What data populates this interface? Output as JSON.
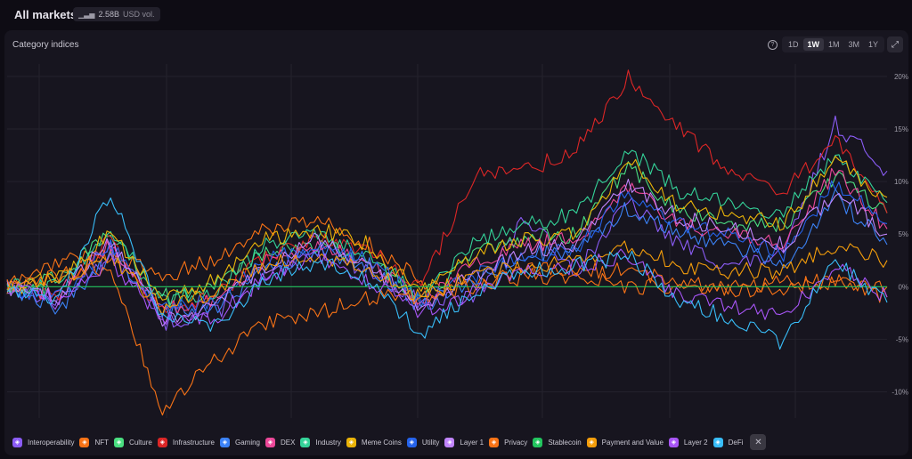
{
  "header": {
    "title": "All markets",
    "volume": "2.58B",
    "volume_unit": "USD vol."
  },
  "panel": {
    "title": "Category indices",
    "timeframes": [
      "1D",
      "1W",
      "1M",
      "3M",
      "1Y"
    ],
    "active_timeframe": "1W"
  },
  "legend": [
    {
      "name": "Interoperability",
      "color": "#8b5cf6"
    },
    {
      "name": "NFT",
      "color": "#f97316"
    },
    {
      "name": "Culture",
      "color": "#4ade80"
    },
    {
      "name": "Infrastructure",
      "color": "#dc2626"
    },
    {
      "name": "Gaming",
      "color": "#3b82f6"
    },
    {
      "name": "DEX",
      "color": "#ec4899"
    },
    {
      "name": "Industry",
      "color": "#34d399"
    },
    {
      "name": "Meme Coins",
      "color": "#eab308"
    },
    {
      "name": "Utility",
      "color": "#2563eb"
    },
    {
      "name": "Layer 1",
      "color": "#c084fc"
    },
    {
      "name": "Privacy",
      "color": "#f97316"
    },
    {
      "name": "Stablecoin",
      "color": "#22c55e"
    },
    {
      "name": "Payment and Value",
      "color": "#f59e0b"
    },
    {
      "name": "Layer 2",
      "color": "#a855f7"
    },
    {
      "name": "DeFi",
      "color": "#38bdf8"
    }
  ],
  "chart_data": {
    "type": "line",
    "y_unit": "%",
    "ylim": [
      -12.5,
      20.5
    ],
    "yticks": [
      "20%",
      "15%",
      "10%",
      "5%",
      "0%",
      "-5%",
      "-10%"
    ],
    "ytick_values": [
      20,
      15,
      10,
      5,
      0,
      -5,
      -10
    ],
    "grid": true,
    "series": [
      {
        "name": "Interoperability",
        "color": "#8b5cf6",
        "values": [
          0,
          -1.5,
          3.5,
          -3.5,
          -2.5,
          0.5,
          3.5,
          1.5,
          -1.5,
          -1,
          6.5,
          1.5,
          8,
          4,
          2,
          3,
          15.5,
          11
        ]
      },
      {
        "name": "NFT",
        "color": "#f97316",
        "values": [
          0,
          2.5,
          3,
          1,
          2.5,
          5.5,
          6.5,
          4,
          0.5,
          0.5,
          1.5,
          1.5,
          1.5,
          0.5,
          0,
          0.5,
          0.5,
          -1
        ]
      },
      {
        "name": "Culture",
        "color": "#4ade80",
        "values": [
          0,
          1,
          5,
          -1,
          0,
          3.5,
          4,
          2.5,
          -1,
          3,
          4.5,
          5,
          11.5,
          7,
          6,
          6,
          10.5,
          7
        ]
      },
      {
        "name": "Infrastructure",
        "color": "#dc2626",
        "values": [
          0,
          -1,
          4.5,
          -2.5,
          -1,
          3,
          4.5,
          3.5,
          0,
          10.5,
          11,
          13,
          20,
          15,
          11,
          9,
          14,
          7
        ]
      },
      {
        "name": "Gaming",
        "color": "#3b82f6",
        "values": [
          0,
          -2,
          3,
          -2.5,
          -2,
          1.5,
          3.5,
          2,
          -2,
          0.5,
          3,
          3.5,
          7.5,
          5,
          4,
          2,
          8.5,
          4
        ]
      },
      {
        "name": "DEX",
        "color": "#ec4899",
        "values": [
          0,
          -0.5,
          4,
          -2,
          -1.5,
          2.5,
          4,
          2.5,
          -1.5,
          2,
          4,
          4.5,
          9.5,
          6,
          5,
          4,
          11,
          5.5
        ]
      },
      {
        "name": "Industry",
        "color": "#34d399",
        "values": [
          0,
          0,
          5.5,
          -1.5,
          -0.5,
          4,
          5,
          3,
          -1,
          4,
          6,
          7,
          13,
          9,
          8,
          7,
          12.5,
          8
        ]
      },
      {
        "name": "Meme Coins",
        "color": "#eab308",
        "values": [
          0,
          1,
          5,
          -1,
          0.5,
          4.5,
          5.5,
          4,
          -0.5,
          3,
          4.5,
          5,
          12,
          7.5,
          7,
          6,
          12,
          8.5
        ]
      },
      {
        "name": "Utility",
        "color": "#2563eb",
        "values": [
          0,
          -1,
          4,
          -2,
          -1.5,
          2.5,
          4,
          2.5,
          -1.5,
          1,
          3,
          3.5,
          9,
          6,
          5,
          3,
          10,
          6
        ]
      },
      {
        "name": "Layer 1",
        "color": "#c084fc",
        "values": [
          0,
          -1,
          4.5,
          -3,
          -2,
          2,
          4.5,
          2,
          -2,
          1,
          3.5,
          4,
          10,
          6.5,
          5.5,
          4,
          9,
          5
        ]
      },
      {
        "name": "Privacy",
        "color": "#f97316",
        "values": [
          0,
          1,
          2,
          -12,
          -7,
          -3.5,
          -2.5,
          -1,
          -1,
          0,
          1,
          1,
          0,
          0,
          -0.5,
          0,
          0.5,
          0
        ]
      },
      {
        "name": "Stablecoin",
        "color": "#22c55e",
        "values": [
          0,
          0,
          0,
          0,
          0,
          0,
          0,
          0,
          0,
          0,
          0,
          0,
          0,
          0,
          0,
          0,
          0,
          0
        ]
      },
      {
        "name": "Payment and Value",
        "color": "#f59e0b",
        "values": [
          0,
          0.5,
          3,
          -2,
          -0.5,
          2,
          3,
          1.5,
          -1,
          1,
          2,
          2.5,
          4,
          2,
          1.5,
          1.5,
          4,
          2.5
        ]
      },
      {
        "name": "Layer 2",
        "color": "#a855f7",
        "values": [
          0,
          -1.5,
          2.5,
          -3,
          -3,
          1,
          3,
          0.5,
          -2.5,
          -0.5,
          1.5,
          2,
          3,
          -1,
          -2,
          -3,
          2,
          -1
        ]
      },
      {
        "name": "DeFi",
        "color": "#38bdf8",
        "values": [
          0,
          -1,
          9,
          -3,
          -3.5,
          0.5,
          2.5,
          0.5,
          -4.5,
          -0.5,
          1.5,
          2,
          3,
          -1.5,
          -3,
          -5.5,
          2.5,
          -1.5
        ]
      }
    ]
  }
}
